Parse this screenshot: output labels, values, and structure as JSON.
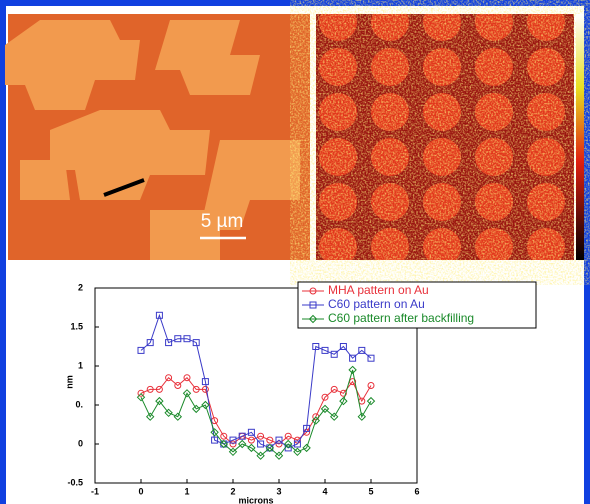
{
  "images": {
    "scale_bar": "5 µm"
  },
  "chart_data": {
    "type": "line",
    "ylabel": "nm",
    "xlabel": "microns",
    "x": [
      0,
      0.2,
      0.4,
      0.6,
      0.8,
      1.0,
      1.2,
      1.4,
      1.6,
      1.8,
      2.0,
      2.2,
      2.4,
      2.6,
      2.8,
      3.0,
      3.2,
      3.4,
      3.6,
      3.8,
      4.0,
      4.2,
      4.4,
      4.6,
      4.8,
      5.0
    ],
    "series": [
      {
        "name": "MHA pattern on Au",
        "color": "#e8303a",
        "marker": "circle",
        "values": [
          0.65,
          0.7,
          0.7,
          0.85,
          0.75,
          0.85,
          0.7,
          0.7,
          0.3,
          0.1,
          0.0,
          0.1,
          0.05,
          0.1,
          0.05,
          0.0,
          0.1,
          0.05,
          0.15,
          0.35,
          0.6,
          0.7,
          0.65,
          0.8,
          0.55,
          0.75
        ]
      },
      {
        "name": "C60 pattern on Au",
        "color": "#3a3ac8",
        "marker": "square",
        "values": [
          1.2,
          1.3,
          1.65,
          1.3,
          1.35,
          1.35,
          1.3,
          0.8,
          0.05,
          0.0,
          0.05,
          0.1,
          0.15,
          0.0,
          -0.05,
          0.05,
          -0.05,
          0.0,
          0.2,
          1.25,
          1.2,
          1.15,
          1.25,
          1.1,
          1.2,
          1.1
        ]
      },
      {
        "name": "C60 pattern after backfilling",
        "color": "#1a8a2a",
        "marker": "diamond",
        "values": [
          0.6,
          0.35,
          0.55,
          0.4,
          0.35,
          0.65,
          0.45,
          0.5,
          0.15,
          0.0,
          -0.1,
          0.0,
          -0.05,
          -0.15,
          -0.05,
          -0.15,
          0.0,
          -0.1,
          -0.05,
          0.3,
          0.45,
          0.35,
          0.55,
          0.95,
          0.35,
          0.55
        ]
      }
    ],
    "xlim": [
      -1,
      6
    ],
    "xticks": [
      -1,
      0,
      1,
      2,
      3,
      4,
      5,
      6
    ],
    "ylim": [
      -0.5,
      2
    ],
    "yticks": [
      -0.5,
      0,
      {
        "value": 0.5,
        "label": "0."
      },
      1,
      1.5,
      2
    ],
    "legend": "top-right"
  }
}
